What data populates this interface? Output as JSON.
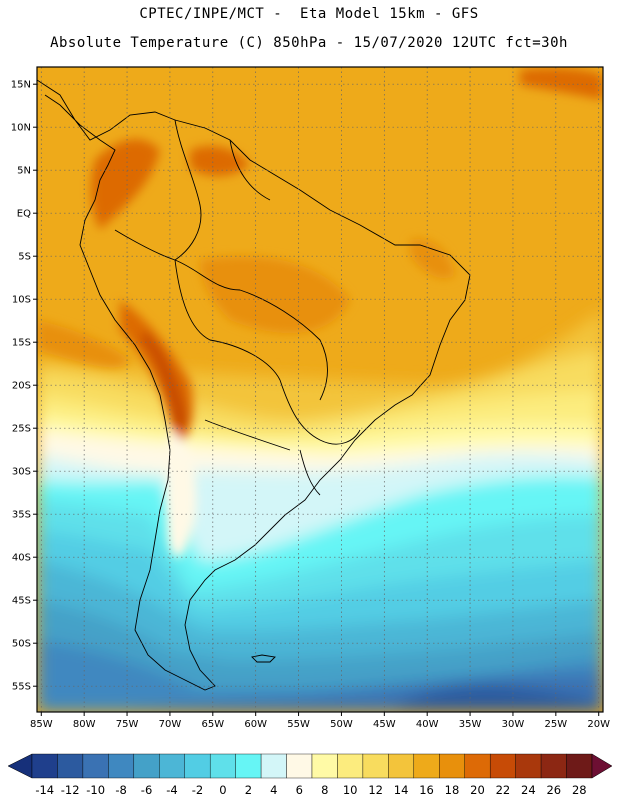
{
  "title_line1": "CPTEC/INPE/MCT -  Eta Model 15km - GFS",
  "title_line2": "Absolute Temperature (C) 850hPa - 15/07/2020 12UTC fct=30h",
  "map": {
    "lat_labels": [
      "15N",
      "10N",
      "5N",
      "EQ",
      "5S",
      "10S",
      "15S",
      "20S",
      "25S",
      "30S",
      "35S",
      "40S",
      "45S",
      "50S",
      "55S"
    ],
    "lon_labels": [
      "85W",
      "80W",
      "75W",
      "70W",
      "65W",
      "60W",
      "55W",
      "50W",
      "45W",
      "40W",
      "35W",
      "30W",
      "25W",
      "20W"
    ],
    "lat_values": [
      15,
      10,
      5,
      0,
      -5,
      -10,
      -15,
      -20,
      -25,
      -30,
      -35,
      -40,
      -45,
      -50,
      -55
    ],
    "lon_values": [
      -85,
      -80,
      -75,
      -70,
      -65,
      -60,
      -55,
      -50,
      -45,
      -40,
      -35,
      -30,
      -25,
      -20
    ],
    "extent": {
      "lon_min": -85.5,
      "lon_max": -19.5,
      "lat_min": -58,
      "lat_max": 17
    }
  },
  "colorbar": {
    "labels": [
      "-14",
      "-12",
      "-10",
      "-8",
      "-6",
      "-4",
      "-2",
      "0",
      "2",
      "4",
      "6",
      "8",
      "10",
      "12",
      "14",
      "16",
      "18",
      "20",
      "22",
      "24",
      "26",
      "28"
    ],
    "colors": [
      "#1f3f8c",
      "#2c5a9f",
      "#3a72b3",
      "#3f88c0",
      "#44a1c8",
      "#4cb6d6",
      "#52cde4",
      "#5fe0ea",
      "#66f5f5",
      "#d3f6f8",
      "#fff9e6",
      "#fffaa6",
      "#fcec7e",
      "#f8dc5e",
      "#f3c43b",
      "#eeaa1a",
      "#e8900c",
      "#dd6a06",
      "#c74b06",
      "#a9380c",
      "#8c2713",
      "#6e1a18"
    ],
    "under_color": "#16307a",
    "over_color": "#6d0f33"
  }
}
